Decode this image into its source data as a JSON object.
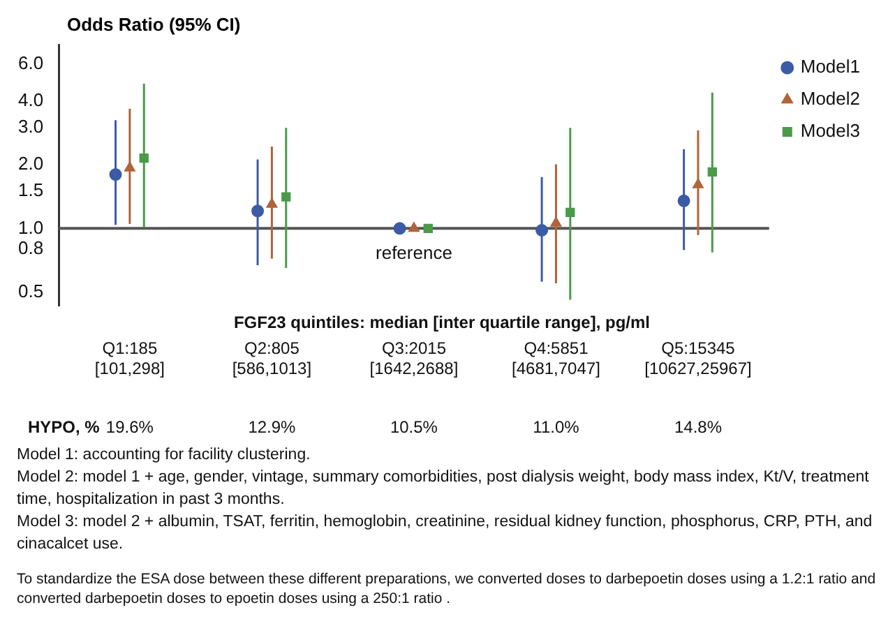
{
  "chart_data": {
    "type": "scatter",
    "ylabel": "Odds Ratio (95% CI)",
    "xlabel": "FGF23 quintiles: median [inter quartile range], pg/ml",
    "categories": [
      "Q1:185 [101,298]",
      "Q2:805 [586,1013]",
      "Q3:2015 [1642,2688]",
      "Q4:5851 [4681,7047]",
      "Q5:15345 [10627,25967]"
    ],
    "log": "y",
    "ylim": [
      0.43,
      7.4
    ],
    "yticks": [
      {
        "value": 0.5,
        "label": "0.5"
      },
      {
        "value": 0.8,
        "label": "0.8"
      },
      {
        "value": 1,
        "label": "1.0"
      },
      {
        "value": 1.5,
        "label": "1.5"
      },
      {
        "value": 2,
        "label": "2.0"
      },
      {
        "value": 3,
        "label": "3.0"
      },
      {
        "value": 4,
        "label": "4.0"
      },
      {
        "value": 6,
        "label": "6.0"
      }
    ],
    "series": [
      {
        "name": "Model1",
        "color": "#3b5ba5",
        "marker": "circle",
        "values": [
          1.8,
          1.21,
          1.0,
          0.98,
          1.35
        ],
        "errors": [
          [
            1.04,
            3.25
          ],
          [
            0.67,
            2.12
          ],
          null,
          [
            0.56,
            1.75
          ],
          [
            0.79,
            2.37
          ]
        ]
      },
      {
        "name": "Model2",
        "color": "#b0643a",
        "marker": "triangle",
        "values": [
          1.93,
          1.3,
          1.0,
          1.06,
          1.61
        ],
        "errors": [
          [
            1.05,
            3.68
          ],
          [
            0.72,
            2.44
          ],
          null,
          [
            0.55,
            2.01
          ],
          [
            0.93,
            2.91
          ]
        ]
      },
      {
        "name": "Model3",
        "color": "#4a9a4a",
        "marker": "square",
        "values": [
          2.15,
          1.41,
          1.0,
          1.19,
          1.85
        ],
        "errors": [
          [
            1.01,
            4.84
          ],
          [
            0.65,
            2.99
          ],
          null,
          [
            0.46,
            2.99
          ],
          [
            0.77,
            4.39
          ]
        ]
      }
    ],
    "ref_lines": [
      {
        "axis": "y",
        "value": 1,
        "color": "#555555"
      }
    ],
    "legend": "top right",
    "grid": false,
    "annotations": [
      "reference",
      "HYPO, %",
      "19.6%",
      "12.9%",
      "10.5%",
      "11.0%",
      "14.8%",
      "Model 1: accounting for facility clustering.",
      "Model 2: model 1 + age, gender, vintage, summary comorbidities, post dialysis weight, body mass index, Kt/V, treatment time, hospitalization in past 3 months.",
      "Model 3: model 2 + albumin, TSAT, ferritin, hemoglobin, creatinine,  residual kidney function, phosphorus, CRP, PTH, and cinacalcet use.",
      "To standardize the ESA dose between these different preparations, we converted doses to darbepoetin doses using a 1.2:1 ratio and converted darbepoetin doses to epoetin doses using a 250:1 ratio ."
    ]
  }
}
